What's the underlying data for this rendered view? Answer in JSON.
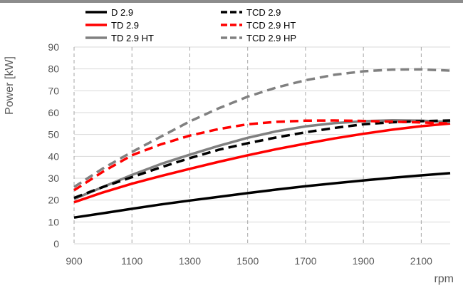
{
  "chart_data": {
    "type": "line",
    "title": "",
    "xlabel": "rpm",
    "ylabel": "Power [kW]",
    "xlim": [
      900,
      2200
    ],
    "ylim": [
      0,
      90
    ],
    "xticks": [
      "900",
      "1100",
      "1300",
      "1500",
      "1700",
      "1900",
      "2100"
    ],
    "yticks": [
      "0",
      "10",
      "20",
      "30",
      "40",
      "50",
      "60",
      "70",
      "80",
      "90"
    ],
    "grid": {
      "x": "dashed",
      "y": "solid"
    },
    "legend": {
      "placement": "top",
      "columns": 2
    },
    "series": [
      {
        "name": "D 2.9",
        "color": "#000000",
        "dash": "solid",
        "x": [
          900,
          1000,
          1100,
          1200,
          1300,
          1400,
          1500,
          1600,
          1700,
          1800,
          1900,
          2000,
          2100,
          2200
        ],
        "y": [
          12,
          14,
          16,
          18,
          19.8,
          21.5,
          23.2,
          24.8,
          26.3,
          27.7,
          29,
          30.2,
          31.3,
          32.3
        ]
      },
      {
        "name": "TD 2.9",
        "color": "#ff0000",
        "dash": "solid",
        "x": [
          900,
          1000,
          1100,
          1200,
          1300,
          1400,
          1500,
          1600,
          1700,
          1800,
          1900,
          2000,
          2100,
          2200
        ],
        "y": [
          19,
          23.5,
          27.5,
          31,
          34.3,
          37.5,
          40.5,
          43.3,
          45.8,
          48.2,
          50.3,
          52.2,
          53.8,
          55
        ]
      },
      {
        "name": "TD 2.9 HT",
        "color": "#808080",
        "dash": "solid",
        "x": [
          900,
          1000,
          1100,
          1200,
          1300,
          1400,
          1500,
          1600,
          1700,
          1800,
          1900,
          2000,
          2100,
          2200
        ],
        "y": [
          20.5,
          26,
          31.5,
          36.5,
          40.8,
          44.8,
          48.5,
          51.5,
          53.7,
          55.2,
          56.1,
          56.5,
          56.3,
          55.7
        ]
      },
      {
        "name": "TCD 2.9",
        "color": "#000000",
        "dash": "dashed",
        "x": [
          900,
          1000,
          1100,
          1200,
          1300,
          1400,
          1500,
          1600,
          1700,
          1800,
          1900,
          2000,
          2100,
          2200
        ],
        "y": [
          21,
          26,
          30.5,
          35,
          39.2,
          43,
          46,
          48.7,
          51,
          53,
          54.7,
          55.6,
          56.1,
          56.4
        ]
      },
      {
        "name": "TCD 2.9 HT",
        "color": "#ff0000",
        "dash": "dashed",
        "x": [
          900,
          1000,
          1100,
          1200,
          1300,
          1400,
          1500,
          1600,
          1700,
          1800,
          1900,
          2000,
          2100,
          2200
        ],
        "y": [
          24.5,
          33,
          40.5,
          45.5,
          49.5,
          52.5,
          54.7,
          55.8,
          56.3,
          56.4,
          56.2,
          55.9,
          55.5,
          55
        ]
      },
      {
        "name": "TCD 2.9 HP",
        "color": "#808080",
        "dash": "dashed",
        "x": [
          900,
          1000,
          1100,
          1200,
          1300,
          1400,
          1500,
          1600,
          1700,
          1800,
          1900,
          2000,
          2100,
          2200
        ],
        "y": [
          26,
          34.5,
          42,
          49,
          56,
          62,
          67.3,
          71.5,
          74.8,
          77.3,
          78.9,
          79.7,
          79.8,
          79.2
        ]
      }
    ]
  }
}
